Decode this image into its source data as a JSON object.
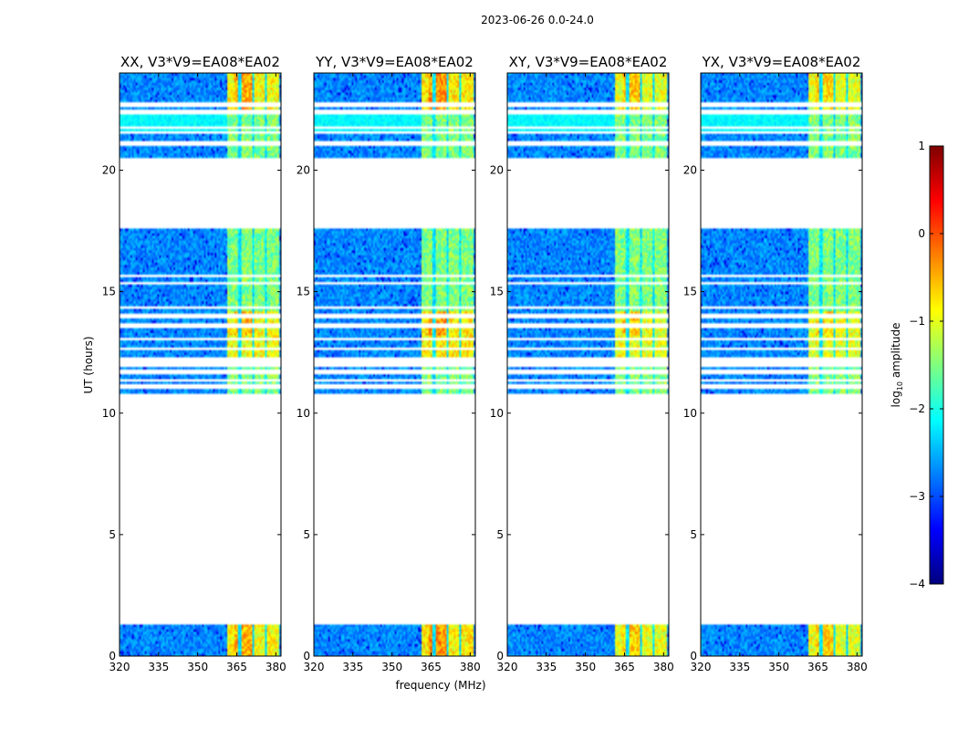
{
  "chart_data": {
    "type": "heatmap",
    "suptitle": "2023-06-26 0.0-24.0",
    "xlabel": "frequency (MHz)",
    "ylabel": "UT (hours)",
    "xlim": [
      320,
      382
    ],
    "ylim": [
      0,
      24
    ],
    "x_ticks": [
      "320",
      "335",
      "350",
      "365",
      "380"
    ],
    "x_tick_values": [
      320,
      335,
      350,
      365,
      380
    ],
    "y_ticks": [
      "0",
      "5",
      "10",
      "15",
      "20"
    ],
    "y_tick_values": [
      0,
      5,
      10,
      15,
      20
    ],
    "panels": [
      {
        "title": "XX, V3*V9=EA08*EA02",
        "intensity": 1.0
      },
      {
        "title": "YY, V3*V9=EA08*EA02",
        "intensity": 1.15
      },
      {
        "title": "XY, V3*V9=EA08*EA02",
        "intensity": 0.85
      },
      {
        "title": "YX, V3*V9=EA08*EA02",
        "intensity": 0.8
      }
    ],
    "data_time_ranges_hours": [
      [
        0.0,
        1.35
      ],
      [
        10.8,
        24.0
      ]
    ],
    "gap_time_ranges_hours": [
      [
        11.05,
        11.15
      ],
      [
        11.3,
        11.4
      ],
      [
        11.65,
        11.75
      ],
      [
        11.95,
        12.25
      ],
      [
        12.65,
        12.7
      ],
      [
        13.05,
        13.1
      ],
      [
        13.3,
        13.35
      ],
      [
        13.55,
        13.7
      ],
      [
        13.95,
        14.05
      ],
      [
        14.3,
        14.4
      ],
      [
        15.35,
        15.4
      ],
      [
        15.6,
        15.65
      ],
      [
        17.6,
        20.45
      ],
      [
        21.0,
        21.15
      ],
      [
        21.5,
        21.55
      ],
      [
        21.75,
        21.8
      ],
      [
        22.3,
        22.45
      ],
      [
        22.6,
        22.75
      ]
    ],
    "bright_band_MHz": [
      361,
      381
    ],
    "band_dropouts_MHz": [
      [
        365.5,
        366.5
      ],
      [
        371.0,
        372.0
      ],
      [
        375.5,
        376.3
      ]
    ],
    "colorbar": {
      "label": "log10 amplitude",
      "label_main": "log",
      "label_sub": "10",
      "label_rest": " amplitude",
      "ticks": [
        "1",
        "0",
        "−1",
        "−2",
        "−3",
        "−4"
      ],
      "tick_values": [
        1,
        0,
        -1,
        -2,
        -3,
        -4
      ],
      "range": [
        -4,
        1
      ],
      "colormap": "jet",
      "colors": [
        "#00007f",
        "#0000ff",
        "#007fff",
        "#00ffff",
        "#7fff7f",
        "#ffff00",
        "#ff7f00",
        "#ff0000",
        "#7f0000"
      ]
    }
  }
}
